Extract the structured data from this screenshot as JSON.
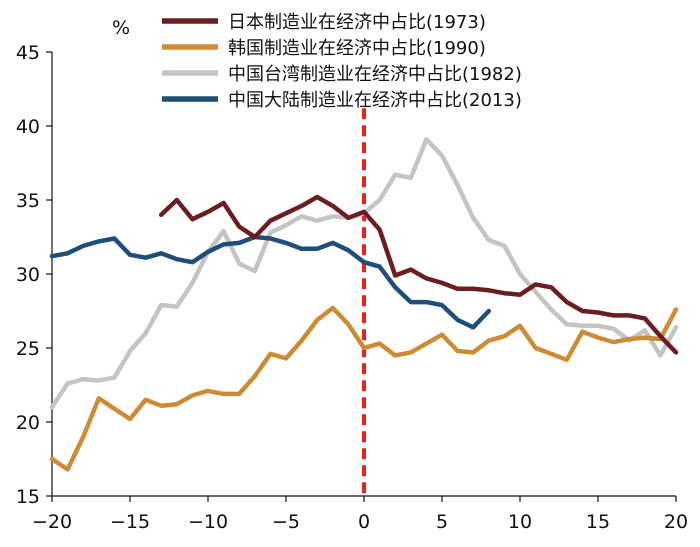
{
  "chart_data": {
    "type": "line",
    "title": "",
    "xlabel": "",
    "ylabel": "%",
    "xlim": [
      -20,
      20
    ],
    "ylim": [
      15,
      45
    ],
    "xticks": [
      -20,
      -15,
      -10,
      -5,
      0,
      5,
      10,
      15,
      20
    ],
    "xtick_labels": [
      "−20",
      "−15",
      "−10",
      "−5",
      "0",
      "5",
      "10",
      "15",
      "20"
    ],
    "yticks": [
      15,
      20,
      25,
      30,
      35,
      40,
      45
    ],
    "ytick_labels": [
      "15",
      "20",
      "25",
      "30",
      "35",
      "40",
      "45"
    ],
    "grid": false,
    "legend_position": "top",
    "reference_line": {
      "x": 0,
      "color": "#e8231e",
      "style": "dashed"
    },
    "series": [
      {
        "name": "日本制造业在经济中占比(1973)",
        "color": "#6b1e22",
        "x": [
          -13,
          -12,
          -11,
          -10,
          -9,
          -8,
          -7,
          -6,
          -5,
          -4,
          -3,
          -2,
          -1,
          0,
          1,
          2,
          3,
          4,
          5,
          6,
          7,
          8,
          9,
          10,
          11,
          12,
          13,
          14,
          15,
          16,
          17,
          18,
          19,
          20
        ],
        "y": [
          34.0,
          35.0,
          33.7,
          34.2,
          34.8,
          33.2,
          32.5,
          33.6,
          34.1,
          34.6,
          35.2,
          34.6,
          33.8,
          34.2,
          33.0,
          29.9,
          30.3,
          29.7,
          29.4,
          29.0,
          29.0,
          28.9,
          28.7,
          28.6,
          29.3,
          29.1,
          28.1,
          27.5,
          27.4,
          27.2,
          27.2,
          27.0,
          25.8,
          24.7
        ]
      },
      {
        "name": "韩国制造业在经济中占比(1990)",
        "color": "#cc8c35",
        "x": [
          -20,
          -19,
          -18,
          -17,
          -16,
          -15,
          -14,
          -13,
          -12,
          -11,
          -10,
          -9,
          -8,
          -7,
          -6,
          -5,
          -4,
          -3,
          -2,
          -1,
          0,
          1,
          2,
          3,
          4,
          5,
          6,
          7,
          8,
          9,
          10,
          11,
          12,
          13,
          14,
          15,
          16,
          17,
          18,
          19,
          20
        ],
        "y": [
          17.5,
          16.8,
          19.0,
          21.6,
          20.9,
          20.2,
          21.5,
          21.1,
          21.2,
          21.8,
          22.1,
          21.9,
          21.9,
          23.1,
          24.6,
          24.3,
          25.5,
          26.9,
          27.7,
          26.6,
          25.0,
          25.3,
          24.5,
          24.7,
          25.3,
          25.9,
          24.8,
          24.7,
          25.5,
          25.8,
          26.5,
          25.0,
          24.6,
          24.2,
          26.1,
          25.7,
          25.4,
          25.6,
          25.7,
          25.6,
          27.6
        ]
      },
      {
        "name": "中国台湾制造业在经济中占比(1982)",
        "color": "#c4c4c4",
        "x": [
          -20,
          -19,
          -18,
          -17,
          -16,
          -15,
          -14,
          -13,
          -12,
          -11,
          -10,
          -9,
          -8,
          -7,
          -6,
          -5,
          -4,
          -3,
          -2,
          -1,
          0,
          1,
          2,
          3,
          4,
          5,
          6,
          7,
          8,
          9,
          10,
          11,
          12,
          13,
          14,
          15,
          16,
          17,
          18,
          19,
          20
        ],
        "y": [
          21.0,
          22.6,
          22.9,
          22.8,
          23.0,
          24.8,
          26.0,
          27.9,
          27.8,
          29.4,
          31.5,
          32.9,
          30.7,
          30.2,
          32.8,
          33.3,
          33.9,
          33.6,
          33.9,
          33.8,
          34.1,
          35.0,
          36.7,
          36.5,
          39.1,
          38.0,
          36.0,
          33.8,
          32.3,
          31.9,
          30.0,
          28.8,
          27.6,
          26.6,
          26.5,
          26.5,
          26.3,
          25.5,
          26.2,
          24.5,
          26.4
        ]
      },
      {
        "name": "中国大陆制造业在经济中占比(2013)",
        "color": "#1f4e79",
        "x": [
          -20,
          -19,
          -18,
          -17,
          -16,
          -15,
          -14,
          -13,
          -12,
          -11,
          -10,
          -9,
          -8,
          -7,
          -6,
          -5,
          -4,
          -3,
          -2,
          -1,
          0,
          1,
          2,
          3,
          4,
          5,
          6,
          7,
          8
        ],
        "y": [
          31.2,
          31.4,
          31.9,
          32.2,
          32.4,
          31.3,
          31.1,
          31.4,
          31.0,
          30.8,
          31.5,
          32.0,
          32.1,
          32.5,
          32.4,
          32.1,
          31.7,
          31.7,
          32.1,
          31.6,
          30.8,
          30.5,
          29.1,
          28.1,
          28.1,
          27.9,
          26.9,
          26.4,
          27.5
        ]
      }
    ]
  }
}
